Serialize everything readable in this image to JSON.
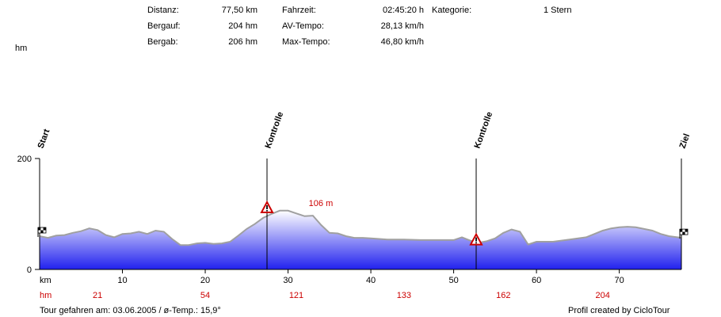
{
  "stats": {
    "distanz_label": "Distanz:",
    "distanz_value": "77,50 km",
    "bergauf_label": "Bergauf:",
    "bergauf_value": "204 hm",
    "bergab_label": "Bergab:",
    "bergab_value": "206 hm",
    "fahrzeit_label": "Fahrzeit:",
    "fahrzeit_value": "02:45:20 h",
    "avtempo_label": "AV-Tempo:",
    "avtempo_value": "28,13 km/h",
    "maxtempo_label": "Max-Tempo:",
    "maxtempo_value": "46,80 km/h",
    "kategorie_label": "Kategorie:",
    "kategorie_value": "1 Stern"
  },
  "footer": {
    "tour": "Tour gefahren am: 03.06.2005  /  ø-Temp.: 15,9°",
    "credit": "Profil created by CicloTour"
  },
  "colors": {
    "fill_top": "#ffffff",
    "fill_bottom": "#2020ee",
    "line": "#a0a0a0",
    "hm_text": "#cc0000",
    "marker": "#cc0000"
  },
  "chart_data": {
    "type": "area",
    "ylabel": "hm",
    "xlabel": "km",
    "xlim": [
      0,
      77.5
    ],
    "ylim": [
      0,
      200
    ],
    "yticks": [
      0,
      200
    ],
    "xticks": [
      10,
      20,
      30,
      40,
      50,
      60,
      70
    ],
    "hm_label": "hm",
    "hm_ticks": [
      {
        "km": 7,
        "value": "21"
      },
      {
        "km": 20,
        "value": "54"
      },
      {
        "km": 31,
        "value": "121"
      },
      {
        "km": 44,
        "value": "133"
      },
      {
        "km": 56,
        "value": "162"
      },
      {
        "km": 68,
        "value": "204"
      }
    ],
    "peak_label": {
      "km": 32.5,
      "alt": 106,
      "text": "106 m"
    },
    "markers": [
      {
        "km": 0,
        "label": "Start",
        "flag": "checkered"
      },
      {
        "km": 27.5,
        "label": "Kontrolle",
        "flag": "warning",
        "alt": 110
      },
      {
        "km": 52.7,
        "label": "Kontrolle",
        "flag": "warning",
        "alt": 52
      },
      {
        "km": 77.5,
        "label": "Ziel",
        "flag": "checkered"
      }
    ],
    "x": [
      0,
      1,
      2,
      3,
      4,
      5,
      6,
      7,
      8,
      9,
      10,
      11,
      12,
      13,
      14,
      15,
      16,
      17,
      18,
      19,
      20,
      21,
      22,
      23,
      24,
      25,
      26,
      27,
      28,
      29,
      30,
      31,
      32,
      33,
      34,
      35,
      36,
      37,
      38,
      39,
      40,
      42,
      44,
      46,
      48,
      50,
      51,
      52,
      53,
      54,
      55,
      56,
      57,
      58,
      59,
      60,
      61,
      62,
      64,
      66,
      67,
      68,
      69,
      70,
      71,
      72,
      73,
      74,
      75,
      76,
      77,
      77.5
    ],
    "y": [
      60,
      57,
      61,
      62,
      66,
      69,
      74,
      71,
      62,
      58,
      64,
      65,
      68,
      64,
      70,
      68,
      55,
      44,
      44,
      47,
      48,
      46,
      47,
      50,
      61,
      73,
      82,
      93,
      100,
      106,
      106,
      101,
      96,
      97,
      80,
      66,
      65,
      60,
      57,
      57,
      56,
      54,
      54,
      53,
      53,
      53,
      58,
      52,
      48,
      51,
      56,
      66,
      72,
      68,
      45,
      50,
      50,
      50,
      54,
      58,
      64,
      70,
      74,
      76,
      77,
      76,
      73,
      70,
      64,
      60,
      58,
      57
    ]
  }
}
